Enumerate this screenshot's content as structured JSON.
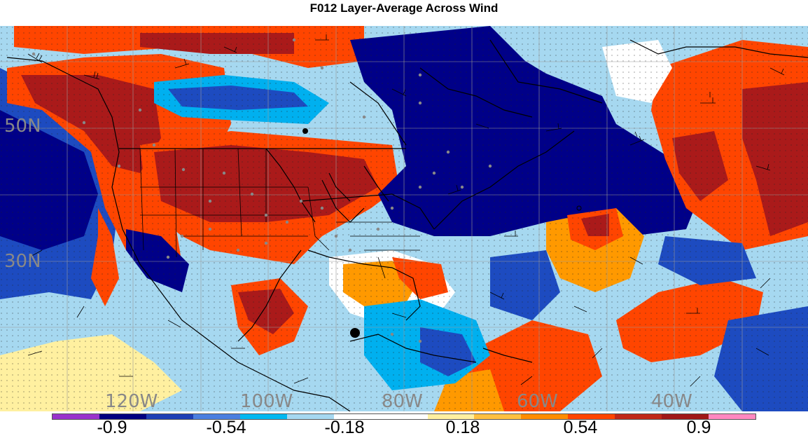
{
  "title": "F012 Layer-Average Across Wind",
  "lat_labels": [
    "50N",
    "30N"
  ],
  "lon_labels": [
    "120W",
    "100W",
    "80W",
    "60W",
    "40W"
  ],
  "colorbar": {
    "colors": [
      "#9933cc",
      "#000080",
      "#1d3fb5",
      "#4a7fe0",
      "#00b8f0",
      "#a6d8f0",
      "#ffffff",
      "#ffffff",
      "#fff0a0",
      "#ffc040",
      "#ff8c00",
      "#ff4500",
      "#c02818",
      "#a01818",
      "#ff88c0"
    ],
    "labels": [
      "-0.9",
      "-0.54",
      "-0.18",
      "0.18",
      "0.54",
      "0.9"
    ]
  },
  "legend_colors": {
    "dark_blue": "#000088",
    "blue": "#1d4bc0",
    "light_blue": "#00b0ef",
    "pale_blue": "#a6d8f0",
    "white": "#ffffff",
    "pale_yellow": "#fff0a0",
    "orange": "#ff9900",
    "red_orange": "#ff4500",
    "dark_red": "#aa1a1a"
  }
}
